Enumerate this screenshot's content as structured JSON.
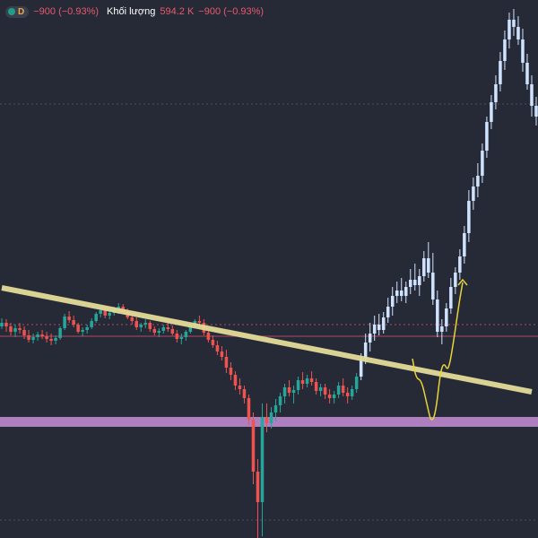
{
  "legend": {
    "interval": "D",
    "change": "−900 (−0.93%)",
    "volume_label": "Khối lượng",
    "volume_value": "594.2 K",
    "volume_change": "−900 (−0.93%)"
  },
  "colors": {
    "background": "#262a36",
    "up": "#26a69a",
    "down": "#ef5350",
    "highlight_bar": "#cfe3ff",
    "trendline": "#e3db99",
    "support_zone": "#c58ed6",
    "projection": "#e8d43a",
    "grid_dotted": "#4a5060",
    "price_line": "#b04a68"
  },
  "chart_data": {
    "type": "candlestick",
    "title": "",
    "xlabel": "",
    "ylabel": "",
    "ylim": [
      0,
      600
    ],
    "candles": [
      [
        236,
        245,
        233,
        240
      ],
      [
        240,
        244,
        230,
        236
      ],
      [
        236,
        240,
        226,
        230
      ],
      [
        230,
        238,
        224,
        234
      ],
      [
        234,
        240,
        228,
        232
      ],
      [
        232,
        236,
        222,
        226
      ],
      [
        226,
        232,
        218,
        221
      ],
      [
        221,
        228,
        217,
        224
      ],
      [
        224,
        230,
        220,
        227
      ],
      [
        227,
        232,
        222,
        225
      ],
      [
        225,
        230,
        218,
        222
      ],
      [
        222,
        228,
        215,
        220
      ],
      [
        220,
        226,
        216,
        223
      ],
      [
        223,
        236,
        221,
        234
      ],
      [
        234,
        250,
        232,
        247
      ],
      [
        247,
        253,
        240,
        243
      ],
      [
        243,
        248,
        235,
        238
      ],
      [
        238,
        240,
        228,
        230
      ],
      [
        230,
        235,
        225,
        232
      ],
      [
        232,
        238,
        228,
        235
      ],
      [
        235,
        245,
        233,
        242
      ],
      [
        242,
        252,
        240,
        250
      ],
      [
        250,
        258,
        246,
        254
      ],
      [
        254,
        256,
        245,
        248
      ],
      [
        248,
        254,
        244,
        251
      ],
      [
        251,
        258,
        248,
        255
      ],
      [
        255,
        262,
        250,
        258
      ],
      [
        258,
        261,
        250,
        252
      ],
      [
        252,
        256,
        244,
        246
      ],
      [
        246,
        250,
        238,
        242
      ],
      [
        242,
        246,
        232,
        235
      ],
      [
        235,
        240,
        230,
        238
      ],
      [
        238,
        244,
        234,
        240
      ],
      [
        240,
        242,
        230,
        233
      ],
      [
        233,
        236,
        226,
        229
      ],
      [
        229,
        234,
        224,
        231
      ],
      [
        231,
        238,
        228,
        235
      ],
      [
        235,
        240,
        230,
        233
      ],
      [
        233,
        237,
        226,
        228
      ],
      [
        228,
        232,
        218,
        222
      ],
      [
        222,
        228,
        216,
        224
      ],
      [
        224,
        232,
        220,
        230
      ],
      [
        230,
        238,
        228,
        236
      ],
      [
        236,
        244,
        234,
        242
      ],
      [
        242,
        248,
        236,
        240
      ],
      [
        240,
        244,
        226,
        229
      ],
      [
        229,
        232,
        218,
        221
      ],
      [
        221,
        226,
        212,
        215
      ],
      [
        215,
        220,
        204,
        208
      ],
      [
        208,
        214,
        198,
        202
      ],
      [
        202,
        210,
        184,
        190
      ],
      [
        190,
        196,
        176,
        182
      ],
      [
        182,
        186,
        165,
        170
      ],
      [
        170,
        178,
        160,
        166
      ],
      [
        166,
        170,
        150,
        156
      ],
      [
        156,
        160,
        126,
        132
      ],
      [
        132,
        140,
        60,
        74
      ],
      [
        74,
        88,
        0,
        40
      ],
      [
        40,
        150,
        2,
        135
      ],
      [
        135,
        150,
        118,
        128
      ],
      [
        128,
        146,
        122,
        140
      ],
      [
        140,
        155,
        130,
        148
      ],
      [
        148,
        162,
        140,
        158
      ],
      [
        158,
        172,
        150,
        168
      ],
      [
        168,
        176,
        158,
        162
      ],
      [
        162,
        170,
        150,
        165
      ],
      [
        165,
        180,
        160,
        176
      ],
      [
        176,
        185,
        166,
        172
      ],
      [
        172,
        182,
        168,
        178
      ],
      [
        178,
        186,
        170,
        174
      ],
      [
        174,
        178,
        160,
        164
      ],
      [
        164,
        172,
        158,
        168
      ],
      [
        168,
        172,
        155,
        160
      ],
      [
        160,
        166,
        150,
        156
      ],
      [
        156,
        164,
        150,
        160
      ],
      [
        160,
        174,
        156,
        170
      ],
      [
        170,
        178,
        158,
        162
      ],
      [
        162,
        168,
        150,
        158
      ],
      [
        158,
        170,
        154,
        166
      ],
      [
        166,
        184,
        162,
        180
      ],
      [
        180,
        206,
        176,
        200
      ],
      [
        200,
        228,
        194,
        218
      ],
      [
        218,
        240,
        208,
        228
      ],
      [
        228,
        248,
        220,
        238
      ],
      [
        238,
        250,
        226,
        232
      ],
      [
        232,
        252,
        228,
        246
      ],
      [
        246,
        268,
        240,
        258
      ],
      [
        258,
        280,
        248,
        270
      ],
      [
        270,
        286,
        262,
        276
      ],
      [
        276,
        290,
        264,
        270
      ],
      [
        270,
        286,
        262,
        280
      ],
      [
        280,
        300,
        272,
        288
      ],
      [
        288,
        306,
        276,
        282
      ],
      [
        282,
        300,
        270,
        292
      ],
      [
        292,
        320,
        286,
        312
      ],
      [
        312,
        330,
        290,
        296
      ],
      [
        296,
        318,
        260,
        266
      ],
      [
        266,
        276,
        224,
        230
      ],
      [
        230,
        244,
        216,
        236
      ],
      [
        236,
        262,
        230,
        256
      ],
      [
        256,
        290,
        250,
        280
      ],
      [
        280,
        302,
        272,
        296
      ],
      [
        296,
        322,
        288,
        314
      ],
      [
        314,
        348,
        306,
        340
      ],
      [
        340,
        388,
        330,
        376
      ],
      [
        376,
        402,
        366,
        392
      ],
      [
        392,
        418,
        380,
        404
      ],
      [
        404,
        440,
        396,
        432
      ],
      [
        432,
        470,
        424,
        464
      ],
      [
        464,
        494,
        456,
        486
      ],
      [
        486,
        516,
        478,
        506
      ],
      [
        506,
        542,
        498,
        532
      ],
      [
        532,
        566,
        522,
        556
      ],
      [
        556,
        586,
        546,
        578
      ],
      [
        578,
        590,
        560,
        570
      ],
      [
        570,
        582,
        550,
        556
      ],
      [
        556,
        568,
        520,
        530
      ],
      [
        530,
        540,
        500,
        506
      ],
      [
        506,
        516,
        470,
        482
      ],
      [
        482,
        492,
        460,
        470
      ]
    ],
    "highlight_from_index": 80,
    "trendline": {
      "from": [
        0,
        279
      ],
      "to": [
        118,
        163
      ]
    },
    "support_zone": [
      124,
      135
    ],
    "reference_levels": [
      484,
      238,
      225,
      20
    ],
    "projection": [
      [
        460,
        200
      ],
      [
        464,
        178
      ],
      [
        470,
        176
      ],
      [
        476,
        150
      ],
      [
        481,
        128
      ],
      [
        486,
        140
      ],
      [
        491,
        184
      ],
      [
        495,
        196
      ],
      [
        500,
        185
      ],
      [
        506,
        220
      ],
      [
        512,
        262
      ],
      [
        516,
        285
      ]
    ]
  }
}
